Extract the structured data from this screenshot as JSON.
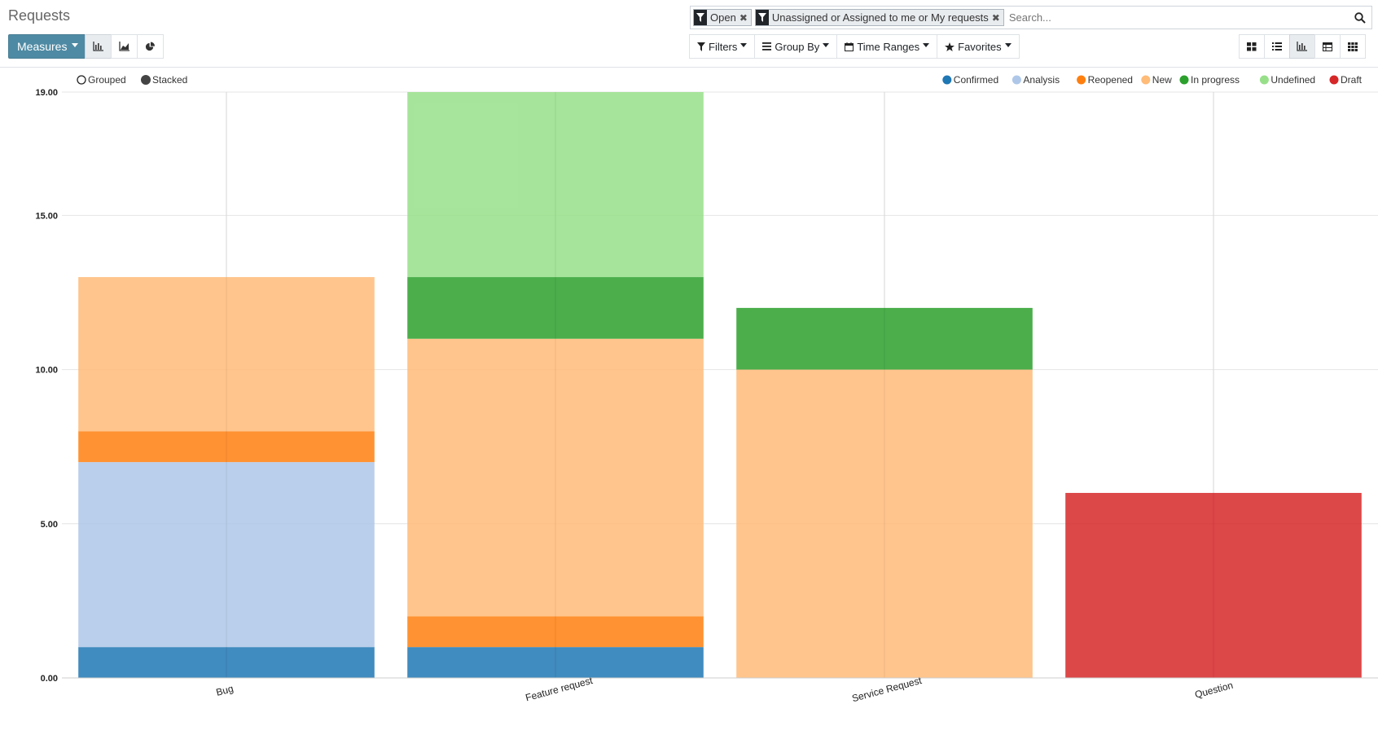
{
  "header": {
    "title": "Requests",
    "measures_label": "Measures"
  },
  "chart_types": [
    {
      "icon": "bar-chart-icon",
      "active": true
    },
    {
      "icon": "line-chart-icon",
      "active": false
    },
    {
      "icon": "pie-chart-icon",
      "active": false
    }
  ],
  "search": {
    "facets": [
      {
        "label": "Open"
      },
      {
        "label": "Unassigned or Assigned to me or My requests"
      }
    ],
    "placeholder": "Search..."
  },
  "filters": {
    "filters_label": "Filters",
    "groupby_label": "Group By",
    "timeranges_label": "Time Ranges",
    "favorites_label": "Favorites"
  },
  "views": [
    {
      "icon": "kanban-icon",
      "active": false
    },
    {
      "icon": "list-icon",
      "active": false
    },
    {
      "icon": "graph-icon",
      "active": true
    },
    {
      "icon": "pivot-icon",
      "active": false
    },
    {
      "icon": "grid-icon",
      "active": false
    }
  ],
  "mode": {
    "grouped_label": "Grouped",
    "stacked_label": "Stacked",
    "selected": "stacked"
  },
  "chart_data": {
    "type": "bar",
    "stacked": true,
    "categories": [
      "Bug",
      "Feature request",
      "Service Request",
      "Question"
    ],
    "series": [
      {
        "name": "Confirmed",
        "color": "#1f77b4",
        "values": [
          1,
          1,
          0,
          0
        ]
      },
      {
        "name": "Analysis",
        "color": "#aec7e8",
        "values": [
          6,
          0,
          0,
          0
        ]
      },
      {
        "name": "Reopened",
        "color": "#ff7f0e",
        "values": [
          1,
          1,
          0,
          0
        ]
      },
      {
        "name": "New",
        "color": "#ffbb78",
        "values": [
          5,
          9,
          10,
          0
        ]
      },
      {
        "name": "In progress",
        "color": "#2ca02c",
        "values": [
          0,
          2,
          2,
          0
        ]
      },
      {
        "name": "Undefined",
        "color": "#98df8a",
        "values": [
          0,
          6,
          0,
          0
        ]
      },
      {
        "name": "Draft",
        "color": "#d62728",
        "values": [
          0,
          0,
          0,
          6
        ]
      }
    ],
    "yticks": [
      "0.00",
      "5.00",
      "10.00",
      "15.00",
      "19.00"
    ],
    "ytick_values": [
      0,
      5,
      10,
      15,
      19
    ],
    "ylim": [
      0,
      19
    ],
    "title": "",
    "xlabel": "",
    "ylabel": "",
    "legend_position": "top-right"
  }
}
